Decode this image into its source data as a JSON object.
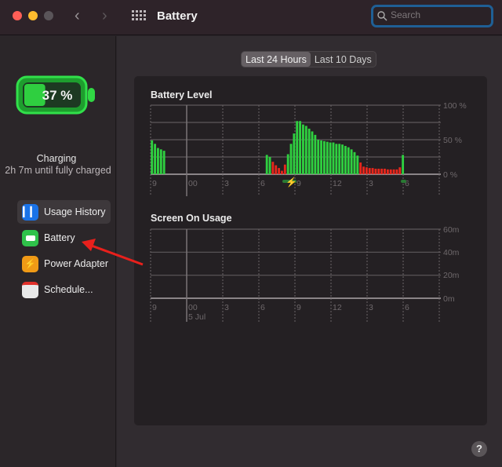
{
  "window": {
    "title": "Battery",
    "search_placeholder": "Search"
  },
  "sidebar": {
    "battery_percent": "37 %",
    "battery_level": 37,
    "status": "Charging",
    "status_detail": "2h 7m until fully charged",
    "items": [
      {
        "label": "Usage History",
        "icon": "usage-history-icon",
        "color": "#1a73e8"
      },
      {
        "label": "Battery",
        "icon": "battery-icon",
        "color": "#2fc24a"
      },
      {
        "label": "Power Adapter",
        "icon": "power-adapter-icon",
        "color": "#f09a16"
      },
      {
        "label": "Schedule...",
        "icon": "schedule-icon",
        "color": "#e9e9e9"
      }
    ]
  },
  "tabs": [
    "Last 24 Hours",
    "Last 10 Days"
  ],
  "chart_data": [
    {
      "type": "bar",
      "title": "Battery Level",
      "interval": "15 min",
      "x_tick_labels": [
        "9",
        "00",
        "3",
        "6",
        "9",
        "12",
        "3",
        "6"
      ],
      "y_tick_labels": [
        "100 %",
        "50 %",
        "0 %"
      ],
      "ylim": [
        0,
        100
      ],
      "grid": true,
      "colors": {
        "charging": "#2fd040",
        "discharging": "#e8271c"
      },
      "levels": [
        49,
        44,
        38,
        36,
        34,
        null,
        null,
        null,
        null,
        null,
        null,
        null,
        null,
        null,
        null,
        null,
        null,
        null,
        null,
        null,
        null,
        null,
        null,
        null,
        null,
        null,
        null,
        null,
        null,
        null,
        null,
        null,
        null,
        null,
        null,
        null,
        null,
        null,
        28,
        25,
        18,
        13,
        9,
        5,
        14,
        29,
        44,
        59,
        77,
        77,
        72,
        70,
        66,
        62,
        57,
        50,
        49,
        48,
        47,
        46,
        46,
        44,
        44,
        43,
        41,
        39,
        36,
        32,
        27,
        17,
        11,
        10,
        9,
        9,
        8,
        8,
        8,
        8,
        7,
        7,
        7,
        7,
        10,
        28,
        null,
        null,
        null,
        null,
        null,
        null,
        null,
        null,
        null,
        null,
        null,
        null
      ],
      "charging": [
        1,
        1,
        1,
        1,
        1,
        0,
        0,
        0,
        0,
        0,
        0,
        0,
        0,
        0,
        0,
        0,
        0,
        0,
        0,
        0,
        0,
        0,
        0,
        0,
        0,
        0,
        0,
        0,
        0,
        0,
        0,
        0,
        0,
        0,
        0,
        0,
        0,
        0,
        1,
        1,
        0,
        0,
        0,
        0,
        0,
        1,
        1,
        1,
        1,
        1,
        1,
        1,
        1,
        1,
        1,
        1,
        1,
        1,
        1,
        1,
        1,
        1,
        1,
        1,
        1,
        1,
        1,
        1,
        1,
        0,
        0,
        0,
        0,
        0,
        0,
        0,
        0,
        0,
        0,
        0,
        0,
        0,
        0,
        1,
        0,
        0,
        0,
        0,
        0,
        0,
        0,
        0,
        0,
        0,
        0,
        0
      ]
    },
    {
      "type": "bar",
      "title": "Screen On Usage",
      "x_tick_labels": [
        "9",
        "00",
        "3",
        "6",
        "9",
        "12",
        "3",
        "6"
      ],
      "date_label": "5 Jul",
      "y_tick_labels": [
        "60m",
        "40m",
        "20m",
        "0m"
      ],
      "ylim": [
        0,
        60
      ],
      "grid": true,
      "values": []
    }
  ]
}
